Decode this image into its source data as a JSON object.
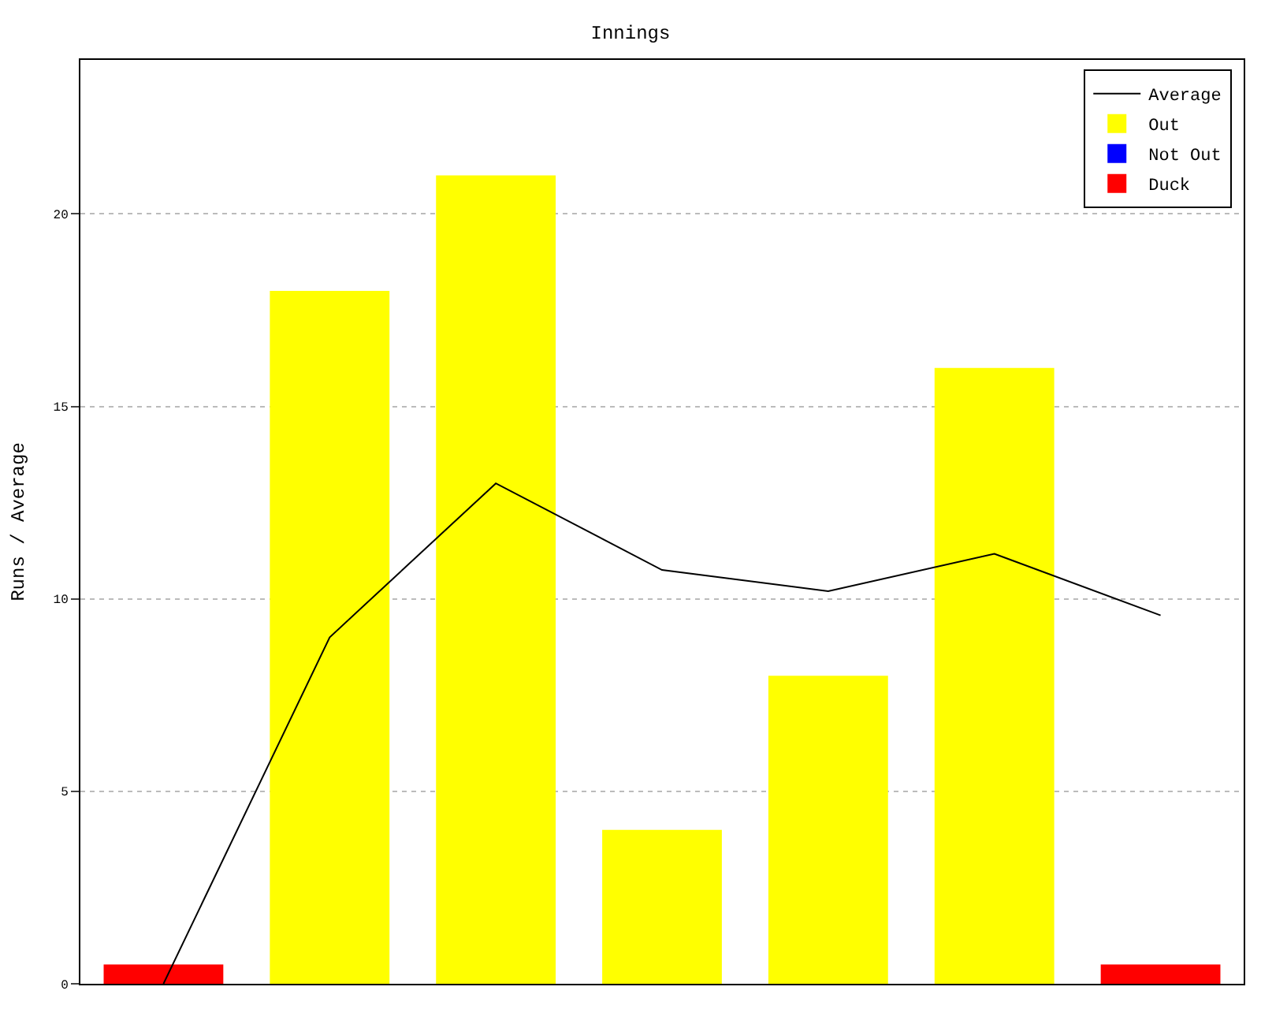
{
  "chart_data": {
    "type": "bar",
    "title": "Innings",
    "ylabel": "Runs / Average",
    "categories": [
      null,
      null,
      null,
      null,
      null,
      null,
      null
    ],
    "series": [
      {
        "name": "Average",
        "type": "line",
        "color": "#000000",
        "values": [
          0,
          9,
          13,
          10.75,
          10.2,
          11.17,
          9.57
        ]
      },
      {
        "name": "Out",
        "color": "#ffff00",
        "values": [
          null,
          18,
          21,
          4,
          8,
          16,
          null
        ]
      },
      {
        "name": "Not Out",
        "color": "#0000ff",
        "values": [
          null,
          null,
          null,
          null,
          null,
          null,
          null
        ]
      },
      {
        "name": "Duck",
        "color": "#ff0000",
        "values": [
          0.5,
          null,
          null,
          null,
          null,
          null,
          0.5
        ]
      }
    ],
    "ylim": [
      0,
      24
    ],
    "yticks": [
      0,
      5,
      10,
      15,
      20
    ],
    "grid": "y",
    "legend": "top right",
    "tick_labels": "y"
  }
}
